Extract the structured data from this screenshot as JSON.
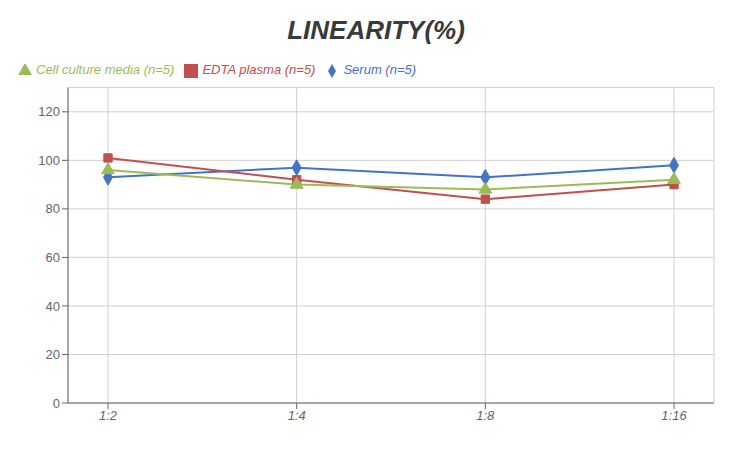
{
  "chart_data": {
    "type": "line",
    "title": "LINEARITY(%)",
    "categories": [
      "1:2",
      "1:4",
      "1:8",
      "1:16"
    ],
    "series": [
      {
        "name": "Serum (n=5)",
        "color": "#4472C4",
        "marker": "diamond",
        "values": [
          93,
          97,
          93,
          98
        ]
      },
      {
        "name": "EDTA plasma (n=5)",
        "color": "#C0504D",
        "marker": "square",
        "values": [
          101,
          92,
          84,
          90
        ]
      },
      {
        "name": "Cell culture media (n=5)",
        "color": "#9BBB59",
        "marker": "triangle",
        "values": [
          96,
          90,
          88,
          92
        ]
      }
    ],
    "ylim": [
      0,
      130
    ],
    "yticks": [
      0,
      20,
      40,
      60,
      80,
      100,
      120
    ],
    "grid": true,
    "legend": "upper left"
  }
}
